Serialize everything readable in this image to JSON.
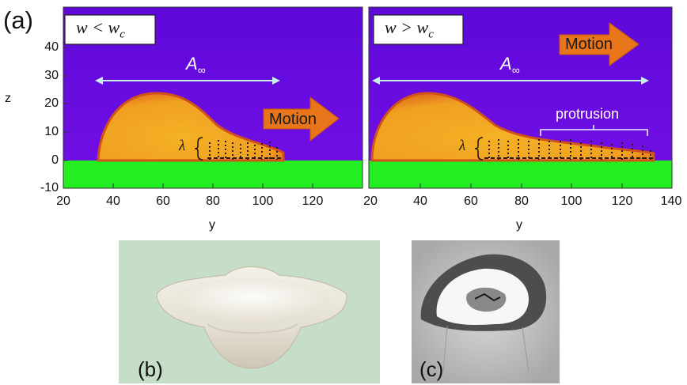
{
  "figure": {
    "panel_labels": {
      "a": "(a)",
      "b": "(b)",
      "c": "(c)"
    },
    "left_plot": {
      "condition_text": "w < w",
      "condition_sub": "c",
      "length_label": "A",
      "length_sub": "∞",
      "motion_label": "Motion",
      "wavelength_label": "λ",
      "xlabel": "y",
      "ylabel": "z",
      "xticks": [
        "20",
        "40",
        "60",
        "80",
        "100",
        "120"
      ],
      "yticks": [
        "40",
        "30",
        "20",
        "10",
        "0",
        "-10"
      ]
    },
    "right_plot": {
      "condition_text": "w > w",
      "condition_sub": "c",
      "length_label": "A",
      "length_sub": "∞",
      "motion_label": "Motion",
      "protrusion_label": "protrusion",
      "wavelength_label": "λ",
      "xlabel": "y",
      "xticks": [
        "20",
        "40",
        "60",
        "80",
        "100",
        "120",
        "140"
      ]
    },
    "colors": {
      "background_purple": "#6a0ae0",
      "cell_orange": "#f2a323",
      "substrate_green": "#22ee22",
      "arrow_cyan": "#c8f0e8",
      "motion_arrow": "#e87519",
      "panel_b_bg": "#c5ddc9",
      "panel_c_bg": "#bcbcbc"
    }
  }
}
